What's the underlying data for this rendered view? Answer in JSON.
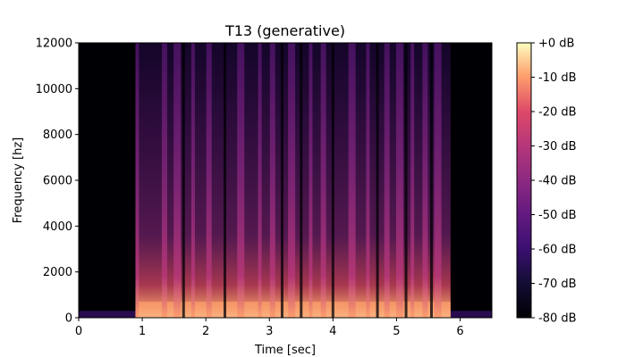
{
  "chart_data": {
    "type": "heatmap",
    "title": "T13 (generative)",
    "xlabel": "Time [sec]",
    "ylabel": "Frequency [hz]",
    "xlim": [
      0,
      6.5
    ],
    "ylim": [
      0,
      12000
    ],
    "x_ticks": [
      0,
      1,
      2,
      3,
      4,
      5,
      6
    ],
    "y_ticks": [
      0,
      2000,
      4000,
      6000,
      8000,
      10000,
      12000
    ],
    "colorbar": {
      "range": [
        -80,
        0
      ],
      "ticks": [
        0,
        -10,
        -20,
        -30,
        -40,
        -50,
        -60,
        -70,
        -80
      ],
      "tick_labels": [
        "+0 dB",
        "-10 dB",
        "-20 dB",
        "-30 dB",
        "-40 dB",
        "-50 dB",
        "-60 dB",
        "-70 dB",
        "-80 dB"
      ],
      "colormap": "magma"
    },
    "speech_region_sec": [
      0.9,
      5.85
    ],
    "vertical_bursts_sec": [
      0.92,
      1.35,
      1.55,
      1.8,
      2.05,
      2.55,
      2.85,
      3.05,
      3.35,
      3.65,
      3.85,
      4.3,
      4.55,
      4.85,
      5.05,
      5.25,
      5.45,
      5.65
    ],
    "colors": {
      "low": "#000004",
      "mid": "#8c2981",
      "high": "#fcfdbf"
    }
  }
}
